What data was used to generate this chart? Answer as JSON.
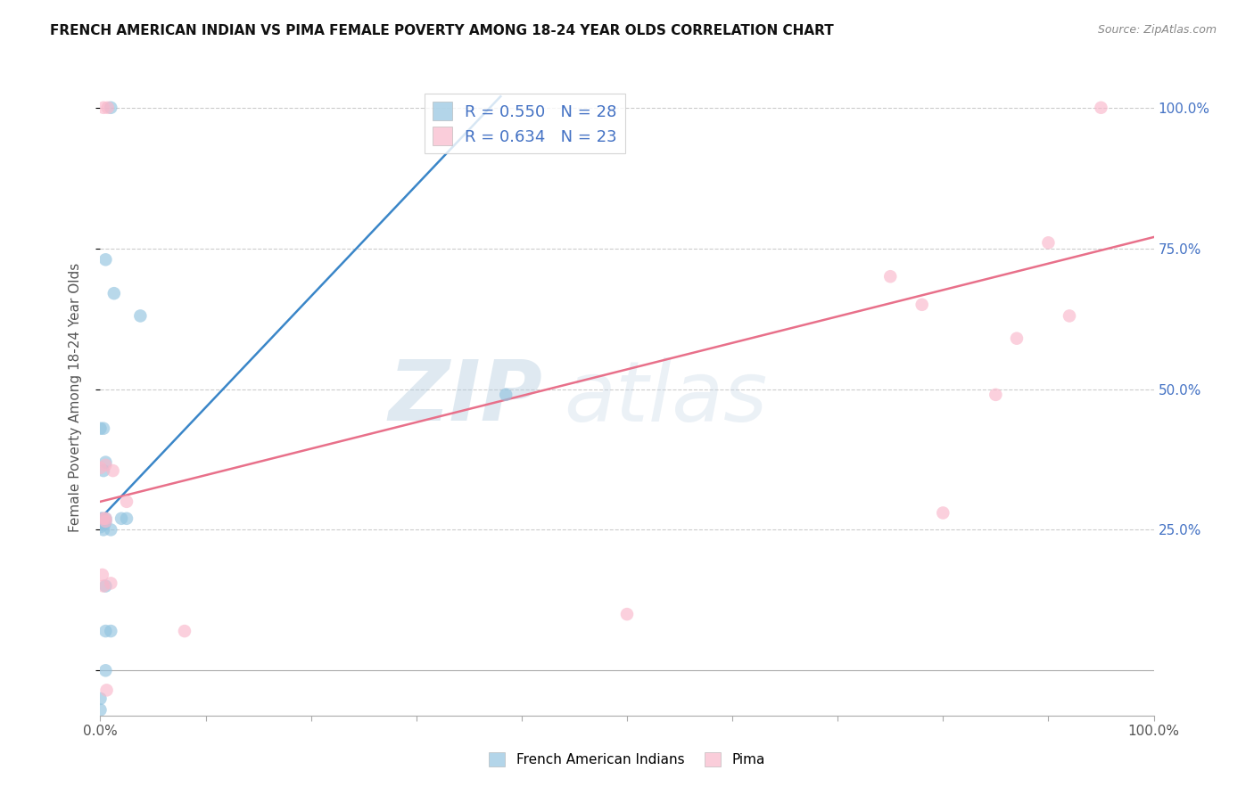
{
  "title": "FRENCH AMERICAN INDIAN VS PIMA FEMALE POVERTY AMONG 18-24 YEAR OLDS CORRELATION CHART",
  "source": "Source: ZipAtlas.com",
  "ylabel": "Female Poverty Among 18-24 Year Olds",
  "xlim": [
    0,
    1.0
  ],
  "ylim": [
    -0.08,
    1.05
  ],
  "french_R": "0.550",
  "french_N": "28",
  "pima_R": "0.634",
  "pima_N": "23",
  "french_color": "#93c4e0",
  "pima_color": "#f9b8cb",
  "french_line_color": "#3a86c8",
  "pima_line_color": "#e8708a",
  "watermark_color": "#c8d8e8",
  "french_line_x": [
    0.0,
    0.38
  ],
  "french_line_y": [
    0.27,
    1.02
  ],
  "pima_line_x": [
    0.0,
    1.0
  ],
  "pima_line_y": [
    0.3,
    0.77
  ],
  "french_points_x": [
    0.005,
    0.013,
    0.038,
    0.0,
    0.003,
    0.005,
    0.003,
    0.005,
    0.002,
    0.001,
    0.003,
    0.002,
    0.004,
    0.001,
    0.0,
    0.01,
    0.003,
    0.005,
    0.02,
    0.025,
    0.005,
    0.005,
    0.01,
    0.005,
    0.385,
    0.01,
    0.0,
    0.0
  ],
  "french_points_y": [
    0.73,
    0.67,
    0.63,
    0.43,
    0.43,
    0.37,
    0.355,
    0.265,
    0.27,
    0.27,
    0.265,
    0.26,
    0.26,
    0.26,
    0.255,
    0.25,
    0.25,
    0.27,
    0.27,
    0.27,
    0.15,
    0.07,
    0.07,
    0.0,
    0.49,
    1.0,
    -0.05,
    -0.07
  ],
  "pima_points_x": [
    0.005,
    0.012,
    0.025,
    0.005,
    0.003,
    0.005,
    0.002,
    0.003,
    0.01,
    0.08,
    0.006,
    0.75,
    0.78,
    0.85,
    0.9,
    0.5,
    0.8,
    0.87,
    0.92,
    0.003,
    0.007,
    0.95,
    0.0
  ],
  "pima_points_y": [
    0.365,
    0.355,
    0.3,
    0.27,
    0.27,
    0.265,
    0.17,
    0.15,
    0.155,
    0.07,
    -0.035,
    0.7,
    0.65,
    0.49,
    0.76,
    0.1,
    0.28,
    0.59,
    0.63,
    1.0,
    1.0,
    1.0,
    0.36
  ]
}
